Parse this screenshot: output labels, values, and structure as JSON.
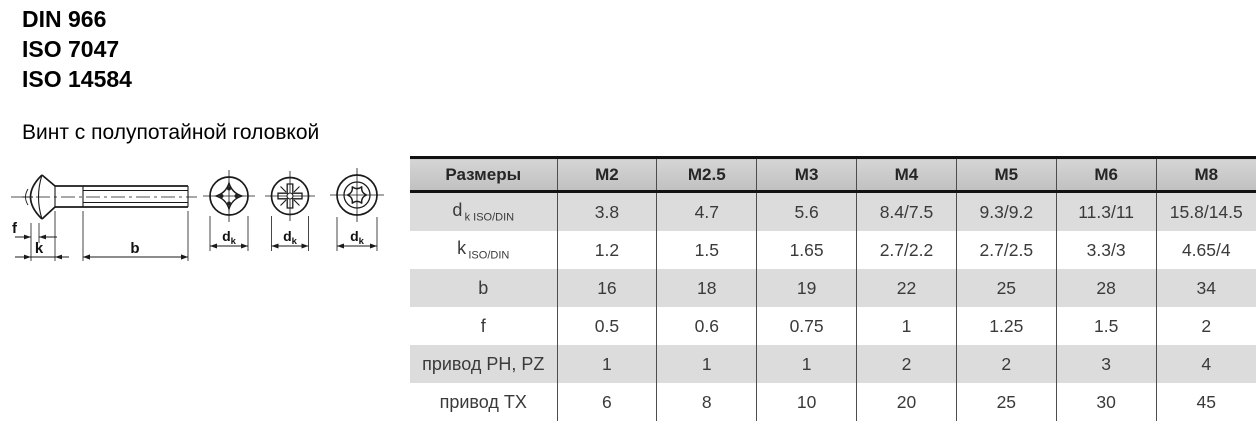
{
  "standards": {
    "items": [
      "DIN 966",
      "ISO 7047",
      "ISO 14584"
    ]
  },
  "title": "Винт с полупотайной головкой",
  "drawing": {
    "dim_labels": {
      "f": "f",
      "k": "k",
      "b": "b",
      "dk_main": "d",
      "dk_sub": "k"
    },
    "views": [
      "side-view",
      "phillips-recess",
      "pozidriv-recess",
      "torx-recess"
    ]
  },
  "table": {
    "columns": [
      "Размеры",
      "M2",
      "M2.5",
      "M3",
      "M4",
      "M5",
      "M6",
      "M8"
    ],
    "rows": [
      {
        "label": "d",
        "label_sub": "k ISO/DIN",
        "values": [
          "3.8",
          "4.7",
          "5.6",
          "8.4/7.5",
          "9.3/9.2",
          "11.3/11",
          "15.8/14.5"
        ]
      },
      {
        "label": "k",
        "label_sub": "ISO/DIN",
        "values": [
          "1.2",
          "1.5",
          "1.65",
          "2.7/2.2",
          "2.7/2.5",
          "3.3/3",
          "4.65/4"
        ]
      },
      {
        "label": "b",
        "label_sub": "",
        "values": [
          "16",
          "18",
          "19",
          "22",
          "25",
          "28",
          "34"
        ]
      },
      {
        "label": "f",
        "label_sub": "",
        "values": [
          "0.5",
          "0.6",
          "0.75",
          "1",
          "1.25",
          "1.5",
          "2"
        ]
      },
      {
        "label": "привод PH, PZ",
        "label_sub": "",
        "values": [
          "1",
          "1",
          "1",
          "2",
          "2",
          "3",
          "4"
        ]
      },
      {
        "label": "привод TX",
        "label_sub": "",
        "values": [
          "6",
          "8",
          "10",
          "20",
          "25",
          "30",
          "45"
        ]
      }
    ]
  },
  "colors": {
    "header_bg": "#c8c8c8",
    "stripe_bg": "#dcdcdc",
    "line": "#1a1a1a"
  }
}
